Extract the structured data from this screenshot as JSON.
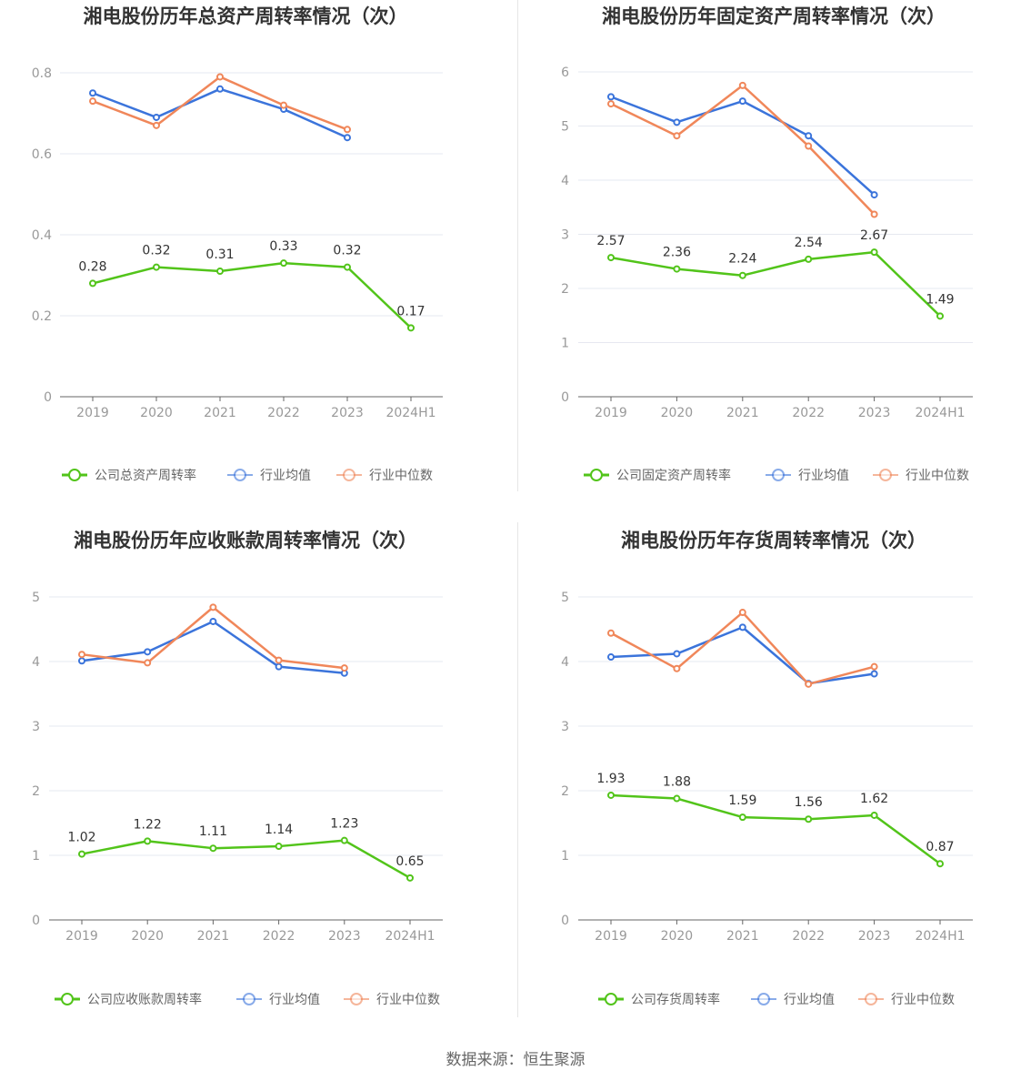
{
  "colors": {
    "company": "#52c41a",
    "average": "#3b74db",
    "median": "#f0875a"
  },
  "source": "数据来源：恒生聚源",
  "chart_data": [
    {
      "type": "line",
      "title": "湘电股份历年总资产周转率情况（次）",
      "categories": [
        "2019",
        "2020",
        "2021",
        "2022",
        "2023",
        "2024H1"
      ],
      "ylim": [
        0,
        0.8
      ],
      "yticks": [
        "0",
        "0.2",
        "0.4",
        "0.6",
        "0.8"
      ],
      "ytick_values": [
        0,
        0.2,
        0.4,
        0.6,
        0.8
      ],
      "grid": true,
      "legend": "bottom",
      "series": [
        {
          "name": "公司总资产周转率",
          "values": [
            0.28,
            0.32,
            0.31,
            0.33,
            0.32,
            0.17
          ],
          "labels": [
            "0.28",
            "0.32",
            "0.31",
            "0.33",
            "0.32",
            "0.17"
          ]
        },
        {
          "name": "行业均值",
          "values": [
            0.75,
            0.69,
            0.76,
            0.71,
            0.64,
            null
          ]
        },
        {
          "name": "行业中位数",
          "values": [
            0.73,
            0.67,
            0.79,
            0.72,
            0.66,
            null
          ]
        }
      ]
    },
    {
      "type": "line",
      "title": "湘电股份历年固定资产周转率情况（次）",
      "categories": [
        "2019",
        "2020",
        "2021",
        "2022",
        "2023",
        "2024H1"
      ],
      "ylim": [
        0,
        6
      ],
      "yticks": [
        "0",
        "1",
        "2",
        "3",
        "4",
        "5",
        "6"
      ],
      "ytick_values": [
        0,
        1,
        2,
        3,
        4,
        5,
        6
      ],
      "grid": true,
      "legend": "bottom",
      "series": [
        {
          "name": "公司固定资产周转率",
          "values": [
            2.57,
            2.36,
            2.24,
            2.54,
            2.67,
            1.49
          ],
          "labels": [
            "2.57",
            "2.36",
            "2.24",
            "2.54",
            "2.67",
            "1.49"
          ]
        },
        {
          "name": "行业均值",
          "values": [
            5.54,
            5.07,
            5.46,
            4.82,
            3.73,
            null
          ]
        },
        {
          "name": "行业中位数",
          "values": [
            5.41,
            4.82,
            5.75,
            4.63,
            3.37,
            null
          ]
        }
      ]
    },
    {
      "type": "line",
      "title": "湘电股份历年应收账款周转率情况（次）",
      "categories": [
        "2019",
        "2020",
        "2021",
        "2022",
        "2023",
        "2024H1"
      ],
      "ylim": [
        0,
        5
      ],
      "yticks": [
        "0",
        "1",
        "2",
        "3",
        "4",
        "5"
      ],
      "ytick_values": [
        0,
        1,
        2,
        3,
        4,
        5
      ],
      "grid": true,
      "legend": "bottom",
      "series": [
        {
          "name": "公司应收账款周转率",
          "values": [
            1.02,
            1.22,
            1.11,
            1.14,
            1.23,
            0.65
          ],
          "labels": [
            "1.02",
            "1.22",
            "1.11",
            "1.14",
            "1.23",
            "0.65"
          ]
        },
        {
          "name": "行业均值",
          "values": [
            4.01,
            4.15,
            4.62,
            3.92,
            3.82,
            null
          ]
        },
        {
          "name": "行业中位数",
          "values": [
            4.11,
            3.98,
            4.84,
            4.02,
            3.9,
            null
          ]
        }
      ]
    },
    {
      "type": "line",
      "title": "湘电股份历年存货周转率情况（次）",
      "categories": [
        "2019",
        "2020",
        "2021",
        "2022",
        "2023",
        "2024H1"
      ],
      "ylim": [
        0,
        5
      ],
      "yticks": [
        "0",
        "1",
        "2",
        "3",
        "4",
        "5"
      ],
      "ytick_values": [
        0,
        1,
        2,
        3,
        4,
        5
      ],
      "grid": true,
      "legend": "bottom",
      "series": [
        {
          "name": "公司存货周转率",
          "values": [
            1.93,
            1.88,
            1.59,
            1.56,
            1.62,
            0.87
          ],
          "labels": [
            "1.93",
            "1.88",
            "1.59",
            "1.56",
            "1.62",
            "0.87"
          ]
        },
        {
          "name": "行业均值",
          "values": [
            4.07,
            4.12,
            4.53,
            3.66,
            3.81,
            null
          ]
        },
        {
          "name": "行业中位数",
          "values": [
            4.44,
            3.89,
            4.76,
            3.65,
            3.92,
            null
          ]
        }
      ]
    }
  ]
}
